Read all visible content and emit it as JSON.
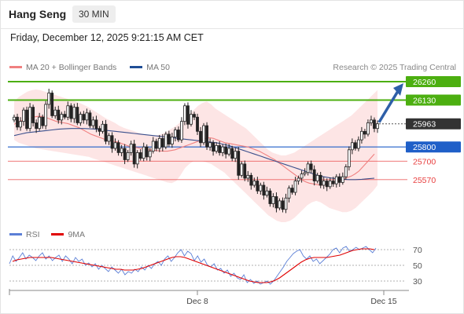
{
  "header": {
    "instrument": "Hang Seng",
    "interval": "30 MIN",
    "datetime": "Friday, December 12, 2025 9:21:15 AM CET"
  },
  "legend": {
    "items": [
      {
        "label": "MA 20 + Bollinger Bands",
        "color": "#f08080"
      },
      {
        "label": "MA 50",
        "color": "#1f4e96"
      }
    ],
    "credit": "Research © 2025 Trading Central"
  },
  "rsi_legend": {
    "items": [
      {
        "label": "RSI",
        "color": "#5b7fd6"
      },
      {
        "label": "9MA",
        "color": "#e00000"
      }
    ]
  },
  "chart_data": [
    {
      "type": "candlestick",
      "title": "Hang Seng",
      "ylim": [
        25270,
        26310
      ],
      "x_tick_labels": [
        "Dec 8",
        "Dec 15"
      ],
      "levels": [
        {
          "value": 26260,
          "label": "26260",
          "kind": "resistance",
          "color": "#4caf10"
        },
        {
          "value": 26130,
          "label": "26130",
          "kind": "resistance",
          "color": "#4caf10"
        },
        {
          "value": 25963,
          "label": "25963",
          "kind": "last",
          "color": "#333333"
        },
        {
          "value": 25800,
          "label": "25800",
          "kind": "pivot",
          "color": "#1f5fc8"
        },
        {
          "value": 25700,
          "label": "25700",
          "kind": "support",
          "color": "#e84040"
        },
        {
          "value": 25570,
          "label": "25570",
          "kind": "support",
          "color": "#e84040"
        }
      ],
      "close": [
        26010,
        25940,
        25980,
        26060,
        25930,
        26080,
        25970,
        25930,
        26010,
        25950,
        26100,
        26180,
        26020,
        26060,
        25990,
        26030,
        26010,
        26090,
        26000,
        26080,
        25970,
        26030,
        25990,
        26040,
        25950,
        25990,
        25930,
        25910,
        25960,
        25840,
        25880,
        25790,
        25830,
        25760,
        25790,
        25710,
        25760,
        25820,
        25680,
        25760,
        25720,
        25800,
        25730,
        25770,
        25840,
        25790,
        25860,
        25800,
        25890,
        25820,
        25870,
        25920,
        25850,
        25980,
        26090,
        25960,
        26030,
        26010,
        25910,
        25830,
        25950,
        25800,
        25830,
        25770,
        25810,
        25760,
        25800,
        25750,
        25790,
        25720,
        25770,
        25600,
        25680,
        25580,
        25600,
        25530,
        25560,
        25490,
        25530,
        25460,
        25490,
        25400,
        25450,
        25370,
        25420,
        25360,
        25440,
        25510,
        25480,
        25560,
        25580,
        25610,
        25620,
        25680,
        25640,
        25560,
        25600,
        25530,
        25560,
        25520,
        25560,
        25540,
        25590,
        25550,
        25590,
        25660,
        25780,
        25830,
        25790,
        25850,
        25910,
        25890,
        25970,
        25990,
        25930,
        25963
      ],
      "ma20": [
        25960,
        25975,
        25985,
        25995,
        26000,
        26010,
        26015,
        26015,
        26010,
        26000,
        25990,
        25980,
        25975,
        25970,
        25965,
        25955,
        25945,
        25935,
        25920,
        25905,
        25890,
        25880,
        25870,
        25860,
        25850,
        25845,
        25840,
        25835,
        25825,
        25815,
        25805,
        25800,
        25795,
        25790,
        25785,
        25780,
        25778,
        25775,
        25772,
        25770,
        25770,
        25775,
        25780,
        25790,
        25800,
        25810,
        25820,
        25830,
        25840,
        25850,
        25860,
        25865,
        25860,
        25850,
        25840,
        25830,
        25825,
        25820,
        25815,
        25810,
        25805,
        25800,
        25790,
        25780,
        25770,
        25755,
        25740,
        25725,
        25710,
        25690,
        25670,
        25650,
        25630,
        25610,
        25590,
        25570,
        25555,
        25545,
        25540,
        25535,
        25530,
        25535,
        25540,
        25545,
        25555,
        25565,
        25575,
        25585,
        25595,
        25610,
        25630,
        25660,
        25690,
        25720,
        25750
      ],
      "bb_upper": [
        26120,
        26150,
        26170,
        26190,
        26200,
        26205,
        26200,
        26190,
        26180,
        26170,
        26160,
        26150,
        26140,
        26130,
        26120,
        26110,
        26095,
        26080,
        26060,
        26040,
        26020,
        26000,
        25985,
        25970,
        25950,
        25935,
        25925,
        25915,
        25905,
        25895,
        25885,
        25880,
        25880,
        25885,
        25895,
        25910,
        25930,
        25950,
        25975,
        26000,
        26030,
        26060,
        26090,
        26110,
        26120,
        26100,
        26070,
        26050,
        26030,
        26010,
        25990,
        25970,
        25950,
        25930,
        25900,
        25870,
        25840,
        25810,
        25780,
        25760,
        25750,
        25740,
        25740,
        25750,
        25760,
        25780,
        25800,
        25820,
        25840,
        25860,
        25880,
        25900,
        25920,
        25940,
        25960,
        25980,
        26000,
        26020,
        26050,
        26080,
        26110,
        26140,
        26170,
        26200
      ],
      "bb_lower": [
        25850,
        25830,
        25820,
        25810,
        25800,
        25790,
        25785,
        25780,
        25775,
        25770,
        25765,
        25760,
        25755,
        25750,
        25745,
        25740,
        25735,
        25730,
        25720,
        25710,
        25700,
        25690,
        25680,
        25670,
        25660,
        25650,
        25640,
        25630,
        25620,
        25610,
        25600,
        25590,
        25580,
        25570,
        25560,
        25550,
        25545,
        25560,
        25600,
        25650,
        25680,
        25700,
        25700,
        25700,
        25690,
        25680,
        25660,
        25640,
        25620,
        25590,
        25560,
        25530,
        25500,
        25470,
        25440,
        25410,
        25380,
        25350,
        25320,
        25300,
        25280,
        25270,
        25270,
        25280,
        25300,
        25330,
        25360,
        25390,
        25410,
        25420,
        25410,
        25390,
        25370,
        25360,
        25350,
        25340,
        25340,
        25350,
        25370,
        25400,
        25430,
        25460,
        25490,
        25530
      ],
      "ma50": [
        25880,
        25890,
        25900,
        25905,
        25910,
        25915,
        25920,
        25925,
        25928,
        25930,
        25930,
        25930,
        25928,
        25925,
        25920,
        25915,
        25910,
        25905,
        25900,
        25895,
        25890,
        25885,
        25880,
        25875,
        25870,
        25865,
        25860,
        25855,
        25850,
        25845,
        25840,
        25835,
        25830,
        25820,
        25810,
        25795,
        25780,
        25765,
        25750,
        25735,
        25720,
        25705,
        25690,
        25675,
        25660,
        25645,
        25630,
        25615,
        25600,
        25590,
        25582,
        25576,
        25572,
        25570,
        25570,
        25572,
        25576,
        25580
      ]
    },
    {
      "type": "line",
      "title": "RSI",
      "ylim": [
        20,
        80
      ],
      "y_tick_labels": [
        "70",
        "50",
        "30"
      ],
      "y_ticks": [
        70,
        50,
        30
      ],
      "series": [
        {
          "name": "RSI",
          "color": "#5b7fd6",
          "values": [
            52,
            62,
            55,
            60,
            66,
            58,
            63,
            60,
            56,
            62,
            66,
            58,
            62,
            56,
            60,
            63,
            55,
            62,
            58,
            52,
            60,
            55,
            58,
            50,
            53,
            48,
            52,
            45,
            50,
            46,
            42,
            48,
            44,
            40,
            45,
            38,
            42,
            40,
            45,
            42,
            48,
            44,
            50,
            46,
            52,
            55,
            50,
            58,
            62,
            55,
            60,
            66,
            70,
            62,
            68,
            65,
            56,
            62,
            54,
            58,
            50,
            48,
            52,
            44,
            46,
            40,
            44,
            36,
            40,
            34,
            32,
            38,
            28,
            32,
            27,
            30,
            26,
            28,
            30,
            26,
            30,
            36,
            42,
            48,
            55,
            60,
            65,
            68,
            70,
            62,
            58,
            62,
            55,
            58,
            52,
            56,
            60,
            64,
            70,
            72,
            66,
            72,
            74,
            68,
            70,
            73,
            70,
            72,
            74,
            70,
            66,
            72
          ]
        },
        {
          "name": "9MA",
          "color": "#e00000",
          "values": [
            55,
            57,
            58,
            59,
            60,
            60,
            60,
            60,
            60,
            60,
            59,
            58,
            57,
            56,
            55,
            54,
            53,
            52,
            51,
            50,
            49,
            48,
            47,
            46,
            45,
            45,
            44,
            44,
            44,
            45,
            46,
            48,
            50,
            52,
            54,
            56,
            58,
            60,
            61,
            61,
            60,
            58,
            56,
            54,
            52,
            50,
            48,
            46,
            44,
            42,
            40,
            38,
            36,
            34,
            32,
            30,
            29,
            28,
            28,
            28,
            29,
            31,
            34,
            38,
            42,
            46,
            50,
            54,
            57,
            59,
            60,
            60,
            60,
            60,
            61,
            62,
            63,
            65,
            67,
            69,
            70,
            71,
            71,
            71,
            70
          ]
        }
      ]
    }
  ]
}
